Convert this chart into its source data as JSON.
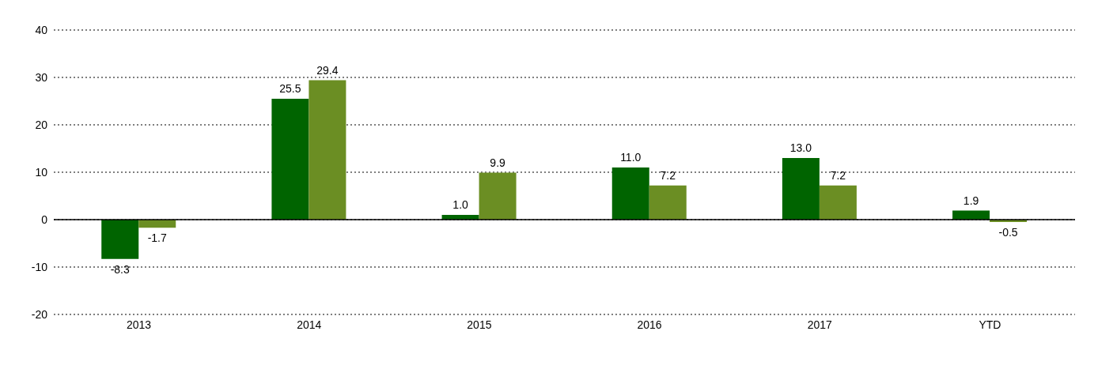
{
  "chart_data": {
    "type": "bar",
    "categories": [
      "2013",
      "2014",
      "2015",
      "2016",
      "2017",
      "YTD"
    ],
    "series": [
      {
        "color": "#006400",
        "values": [
          -8.3,
          25.5,
          1.0,
          11.0,
          13.0,
          1.9
        ],
        "value_labels": [
          "-8.3",
          "25.5",
          "1.0",
          "11.0",
          "13.0",
          "1.9"
        ]
      },
      {
        "color": "#6b8e23",
        "values": [
          -1.7,
          29.4,
          9.9,
          7.2,
          7.2,
          -0.5
        ],
        "value_labels": [
          "-1.7",
          "29.4",
          "9.9",
          "7.2",
          "7.2",
          "-0.5"
        ]
      }
    ],
    "ylim": [
      -20,
      40
    ],
    "yticks": [
      -20,
      -10,
      0,
      10,
      20,
      30,
      40
    ],
    "grid": "y",
    "line_style": "dotted",
    "ref_lines": [
      {
        "axis": "y",
        "value": 0,
        "color": "#000000"
      }
    ]
  }
}
